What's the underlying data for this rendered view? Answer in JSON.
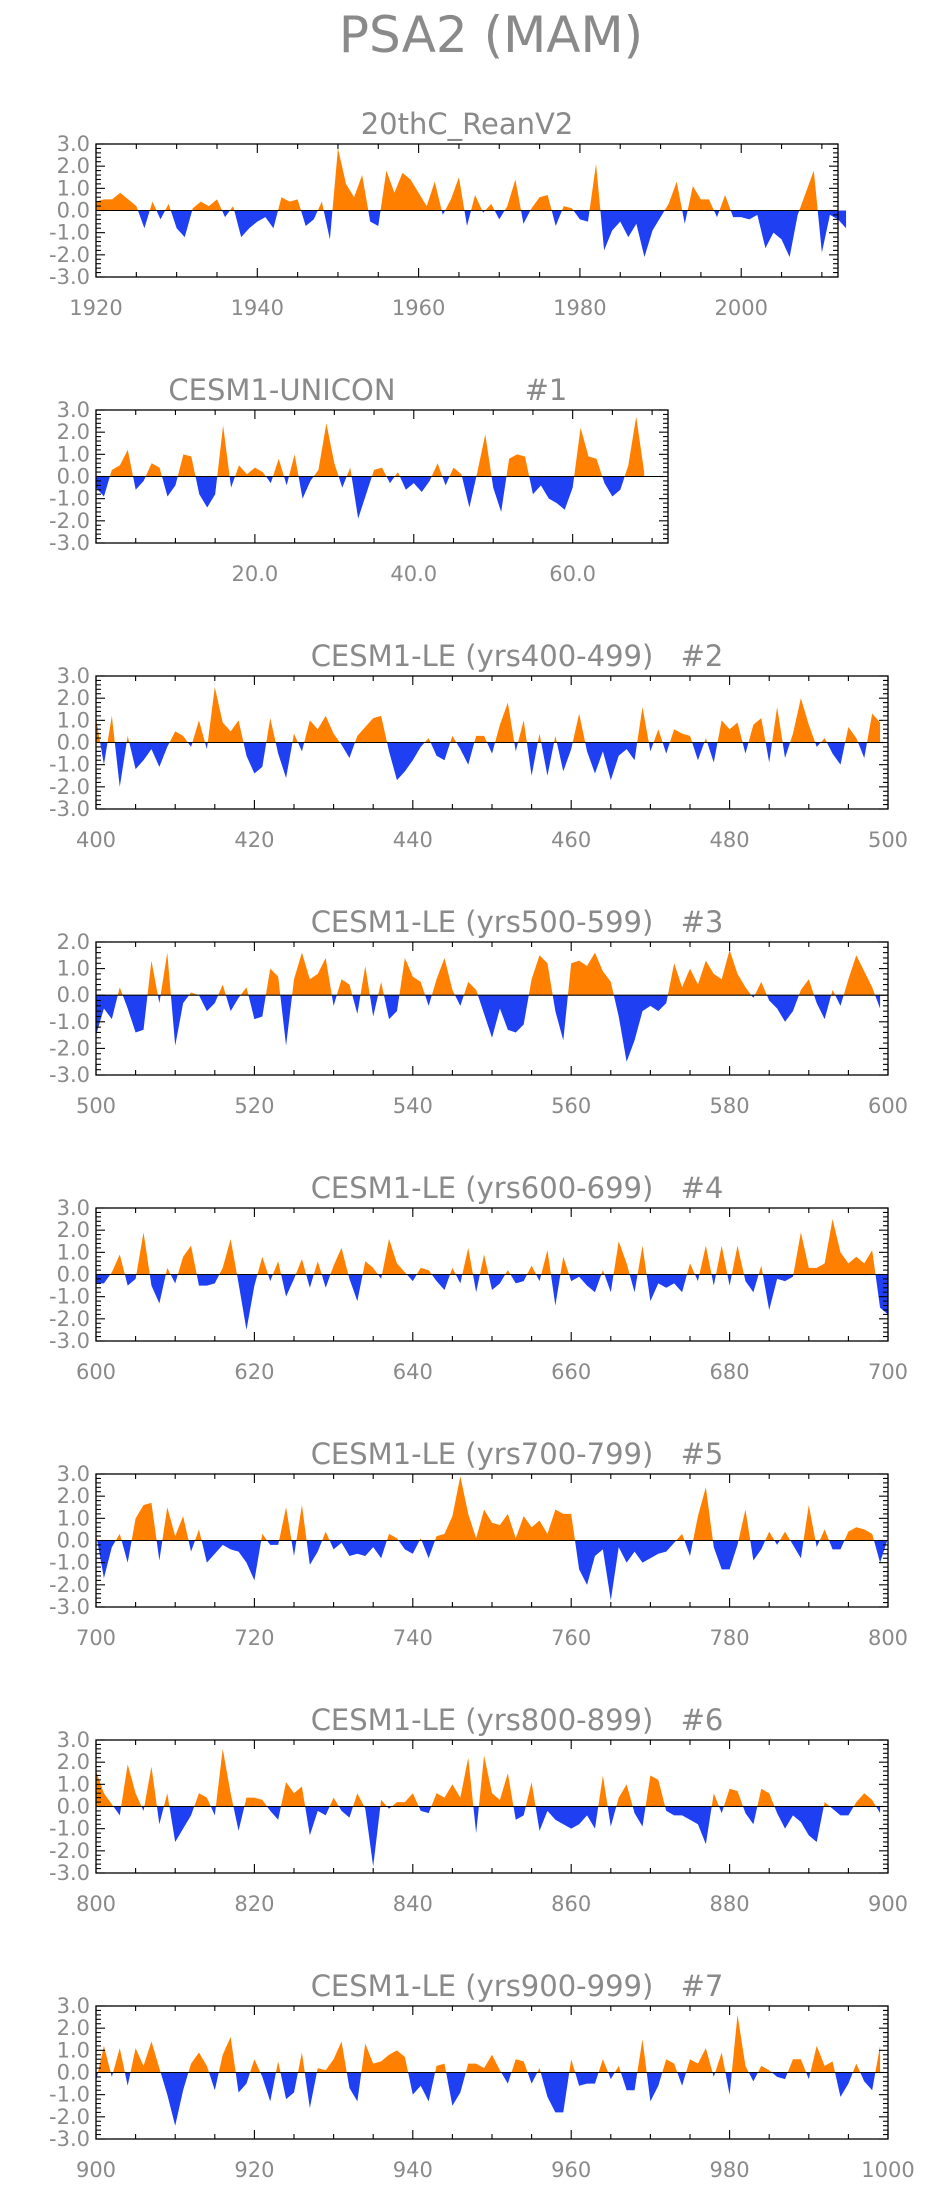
{
  "title": "PSA2 (MAM)",
  "colors": {
    "positive": "#ff8000",
    "negative": "#1f3ff2",
    "text": "#8a8a8a",
    "frame": "#000000"
  },
  "chart_data": [
    {
      "type": "area",
      "title": "20thC_ReanV2",
      "xlim": [
        1920,
        2012
      ],
      "ylim": [
        -3.0,
        3.0
      ],
      "xticks": [
        1920,
        1940,
        1960,
        1980,
        2000
      ],
      "xtick_labels": [
        "1920",
        "1940",
        "1960",
        "1980",
        "2000"
      ],
      "yticks": [
        3,
        2,
        1,
        0,
        -1,
        -2,
        -3
      ],
      "ytick_labels": [
        "3.0",
        "2.0",
        "1.0",
        "0.0",
        "-1.0",
        "-2.0",
        "-3.0"
      ],
      "x_start": 1920,
      "values": [
        0.4,
        0.5,
        0.5,
        0.8,
        0.5,
        0.2,
        -0.8,
        0.4,
        -0.4,
        0.3,
        -0.8,
        -1.2,
        0.1,
        0.4,
        0.2,
        0.5,
        -0.3,
        0.2,
        -1.2,
        -0.8,
        -0.5,
        -0.3,
        -0.8,
        0.6,
        0.4,
        0.5,
        -0.7,
        -0.4,
        0.4,
        -1.3,
        2.8,
        1.2,
        0.6,
        1.6,
        -0.5,
        -0.7,
        1.8,
        0.8,
        1.7,
        1.4,
        0.8,
        0.2,
        1.3,
        -0.2,
        0.5,
        1.5,
        -0.7,
        0.7,
        -0.1,
        0.3,
        -0.4,
        0.2,
        1.4,
        -0.6,
        0.1,
        0.6,
        0.7,
        -0.7,
        0.2,
        0.1,
        -0.4,
        -0.5,
        2.1,
        -1.8,
        -0.9,
        -0.5,
        -1.2,
        -0.6,
        -2.1,
        -0.9,
        -0.3,
        0.3,
        1.3,
        -0.6,
        1.1,
        0.5,
        0.5,
        -0.3,
        0.7,
        -0.3,
        -0.3,
        -0.4,
        -0.2,
        -1.7,
        -1.0,
        -1.3,
        -2.1,
        -0.2,
        0.8,
        1.8,
        -1.9,
        -0.2,
        -0.4,
        -0.8
      ]
    },
    {
      "type": "area",
      "title": "CESM1-UNICON",
      "member": "#1",
      "xlim": [
        0,
        72
      ],
      "ylim": [
        -3.0,
        3.0
      ],
      "xticks": [
        20,
        40,
        60
      ],
      "xtick_labels": [
        "20.0",
        "40.0",
        "60.0"
      ],
      "yticks": [
        3,
        2,
        1,
        0,
        -1,
        -2,
        -3
      ],
      "ytick_labels": [
        "3.0",
        "2.0",
        "1.0",
        "0.0",
        "-1.0",
        "-2.0",
        "-3.0"
      ],
      "x_start": 0,
      "values": [
        -0.5,
        -0.9,
        0.3,
        0.5,
        1.2,
        -0.6,
        -0.2,
        0.6,
        0.4,
        -0.9,
        -0.4,
        1.0,
        0.9,
        -0.8,
        -1.4,
        -0.8,
        2.3,
        -0.5,
        0.5,
        0.1,
        0.4,
        0.2,
        -0.3,
        0.8,
        -0.4,
        1.0,
        -1.0,
        -0.2,
        0.3,
        2.4,
        0.6,
        -0.5,
        0.4,
        -1.9,
        -0.8,
        0.3,
        0.4,
        -0.3,
        0.2,
        -0.6,
        -0.3,
        -0.7,
        -0.2,
        0.6,
        -0.4,
        0.4,
        0.1,
        -1.4,
        0.2,
        1.9,
        -0.5,
        -1.6,
        0.8,
        1.0,
        0.9,
        -0.8,
        -0.4,
        -1.0,
        -1.2,
        -1.5,
        -0.5,
        2.2,
        0.9,
        0.8,
        -0.3,
        -0.9,
        -0.6,
        0.5,
        2.7,
        0.2
      ]
    },
    {
      "type": "area",
      "title": "CESM1-LE (yrs400-499)",
      "member": "#2",
      "xlim": [
        400,
        500
      ],
      "ylim": [
        -3.0,
        3.0
      ],
      "xticks": [
        400,
        420,
        440,
        460,
        480,
        500
      ],
      "xtick_labels": [
        "400",
        "420",
        "440",
        "460",
        "480",
        "500"
      ],
      "yticks": [
        3,
        2,
        1,
        0,
        -1,
        -2,
        -3
      ],
      "ytick_labels": [
        "3.0",
        "2.0",
        "1.0",
        "0.0",
        "-1.0",
        "-2.0",
        "-3.0"
      ],
      "x_start": 400,
      "values": [
        1.1,
        -1.0,
        1.2,
        -2.0,
        0.3,
        -1.2,
        -0.8,
        -0.3,
        -1.1,
        -0.2,
        0.5,
        0.3,
        -0.2,
        1.0,
        -0.3,
        2.5,
        0.9,
        0.5,
        1.0,
        -0.6,
        -1.4,
        -1.1,
        1.1,
        -0.5,
        -1.6,
        0.4,
        -0.4,
        1.0,
        0.6,
        1.2,
        0.4,
        -0.1,
        -0.7,
        0.3,
        0.7,
        1.1,
        1.2,
        -0.4,
        -1.7,
        -1.3,
        -0.8,
        -0.2,
        0.2,
        -0.6,
        -0.8,
        0.3,
        -0.3,
        -1.0,
        0.3,
        0.3,
        -0.5,
        0.8,
        1.8,
        -0.4,
        1.0,
        -1.5,
        0.4,
        -1.5,
        0.3,
        -1.3,
        -0.3,
        1.3,
        -0.4,
        -1.4,
        -0.4,
        -1.7,
        -0.6,
        -0.3,
        -0.8,
        1.6,
        -0.4,
        0.6,
        -0.5,
        0.6,
        0.4,
        0.3,
        -0.8,
        0.2,
        -0.9,
        1.0,
        0.6,
        0.9,
        -0.5,
        0.8,
        1.1,
        -0.9,
        1.6,
        -0.7,
        0.4,
        2.0,
        0.8,
        -0.2,
        0.2,
        -0.5,
        -1.0,
        0.7,
        0.2,
        -0.7,
        1.3,
        0.9
      ]
    },
    {
      "type": "area",
      "title": "CESM1-LE (yrs500-599)",
      "member": "#3",
      "xlim": [
        500,
        600
      ],
      "ylim": [
        -3.0,
        2.0
      ],
      "xticks": [
        500,
        520,
        540,
        560,
        580,
        600
      ],
      "xtick_labels": [
        "500",
        "520",
        "540",
        "560",
        "580",
        "600"
      ],
      "yticks": [
        2,
        1,
        0,
        -1,
        -2,
        -3
      ],
      "ytick_labels": [
        "2.0",
        "1.0",
        "0.0",
        "-1.0",
        "-2.0",
        "-3.0"
      ],
      "x_start": 500,
      "values": [
        -1.5,
        -0.5,
        -0.9,
        0.3,
        -0.5,
        -1.4,
        -1.3,
        1.3,
        -0.3,
        1.6,
        -1.9,
        -0.3,
        0.1,
        0.0,
        -0.6,
        -0.3,
        0.4,
        -0.6,
        -0.1,
        0.3,
        -0.9,
        -0.8,
        1.0,
        0.7,
        -1.9,
        0.6,
        1.6,
        0.6,
        0.8,
        1.4,
        -0.4,
        0.6,
        0.4,
        -0.7,
        1.1,
        -0.8,
        0.5,
        -0.9,
        -0.6,
        1.4,
        0.7,
        0.5,
        -0.4,
        0.6,
        1.4,
        0.2,
        -0.4,
        0.5,
        0.2,
        -0.7,
        -1.6,
        -0.5,
        -1.3,
        -1.4,
        -1.1,
        0.6,
        1.5,
        1.2,
        -0.6,
        -1.7,
        1.2,
        1.3,
        1.1,
        1.6,
        0.9,
        0.5,
        -0.8,
        -2.5,
        -1.7,
        -0.6,
        -0.4,
        -0.6,
        -0.3,
        1.2,
        0.3,
        1.0,
        0.4,
        1.3,
        0.8,
        0.6,
        1.7,
        0.8,
        0.3,
        -0.1,
        0.5,
        -0.2,
        -0.5,
        -1.0,
        -0.6,
        0.2,
        0.6,
        -0.3,
        -0.9,
        0.2,
        -0.4,
        0.6,
        1.5,
        0.9,
        0.3,
        -0.5
      ]
    },
    {
      "type": "area",
      "title": "CESM1-LE (yrs600-699)",
      "member": "#4",
      "xlim": [
        600,
        700
      ],
      "ylim": [
        -3.0,
        3.0
      ],
      "xticks": [
        600,
        620,
        640,
        660,
        680,
        700
      ],
      "xtick_labels": [
        "600",
        "620",
        "640",
        "660",
        "680",
        "700"
      ],
      "yticks": [
        3,
        2,
        1,
        0,
        -1,
        -2,
        -3
      ],
      "ytick_labels": [
        "3.0",
        "2.0",
        "1.0",
        "0.0",
        "-1.0",
        "-2.0",
        "-3.0"
      ],
      "x_start": 600,
      "values": [
        -0.4,
        -0.4,
        0.1,
        0.9,
        -0.5,
        -0.2,
        1.9,
        -0.5,
        -1.3,
        0.3,
        -0.4,
        0.8,
        1.3,
        -0.5,
        -0.5,
        -0.4,
        0.3,
        1.6,
        -0.4,
        -2.5,
        -0.5,
        0.8,
        -0.3,
        0.6,
        -1.0,
        -0.2,
        0.7,
        -0.6,
        0.6,
        -0.6,
        0.4,
        1.2,
        -0.2,
        -1.2,
        0.6,
        0.3,
        -0.2,
        1.6,
        0.5,
        0.1,
        -0.3,
        0.3,
        0.2,
        -0.3,
        -0.7,
        0.3,
        -0.4,
        1.2,
        -0.8,
        0.9,
        -0.7,
        -0.4,
        0.2,
        -0.4,
        -0.3,
        0.4,
        -0.3,
        1.1,
        -1.4,
        0.8,
        -0.3,
        -0.1,
        -0.5,
        -0.8,
        0.2,
        -0.8,
        1.5,
        0.5,
        -0.8,
        1.3,
        -1.2,
        -0.4,
        -0.6,
        -0.4,
        -0.8,
        0.5,
        -0.3,
        1.3,
        -0.5,
        1.3,
        -0.5,
        1.3,
        -0.3,
        -0.8,
        0.4,
        -1.6,
        -0.2,
        -0.3,
        -0.1,
        1.9,
        0.3,
        0.3,
        0.5,
        2.5,
        1.0,
        0.5,
        0.8,
        0.5,
        1.1,
        -1.5,
        -1.8
      ]
    },
    {
      "type": "area",
      "title": "CESM1-LE (yrs700-799)",
      "member": "#5",
      "xlim": [
        700,
        800
      ],
      "ylim": [
        -3.0,
        3.0
      ],
      "xticks": [
        700,
        720,
        740,
        760,
        780,
        800
      ],
      "xtick_labels": [
        "700",
        "720",
        "740",
        "760",
        "780",
        "800"
      ],
      "yticks": [
        3,
        2,
        1,
        0,
        -1,
        -2,
        -3
      ],
      "ytick_labels": [
        "3.0",
        "2.0",
        "1.0",
        "0.0",
        "-1.0",
        "-2.0",
        "-3.0"
      ],
      "x_start": 700,
      "values": [
        0.3,
        -1.7,
        -0.3,
        0.3,
        -1.0,
        1.0,
        1.6,
        1.7,
        -0.9,
        1.5,
        0.2,
        1.1,
        -0.5,
        0.5,
        -1.0,
        -0.6,
        -0.2,
        -0.4,
        -0.5,
        -1.0,
        -1.8,
        0.3,
        -0.2,
        -0.2,
        1.5,
        -0.7,
        1.6,
        -1.1,
        -0.5,
        0.4,
        -0.4,
        -0.1,
        -0.7,
        -0.6,
        -0.7,
        -0.3,
        -0.8,
        0.3,
        0.1,
        -0.4,
        -0.6,
        0.1,
        -0.8,
        0.2,
        0.3,
        1.1,
        2.9,
        1.2,
        0.1,
        1.4,
        0.8,
        0.7,
        1.2,
        0.1,
        1.1,
        0.6,
        0.9,
        0.3,
        1.4,
        1.2,
        1.2,
        -1.3,
        -2.0,
        -0.7,
        -0.4,
        -2.7,
        -0.3,
        -1.0,
        -0.5,
        -1.0,
        -0.8,
        -0.6,
        -0.5,
        -0.1,
        0.3,
        -0.7,
        1.1,
        2.4,
        -0.3,
        -1.3,
        -1.3,
        -0.2,
        1.4,
        -0.9,
        -0.4,
        0.4,
        -0.2,
        0.4,
        -0.2,
        -0.8,
        1.6,
        -0.3,
        0.5,
        -0.4,
        -0.4,
        0.4,
        0.6,
        0.5,
        0.3,
        -1.0,
        0.1
      ]
    },
    {
      "type": "area",
      "title": "CESM1-LE (yrs800-899)",
      "member": "#6",
      "xlim": [
        800,
        900
      ],
      "ylim": [
        -3.0,
        3.0
      ],
      "xticks": [
        800,
        820,
        840,
        860,
        880,
        900
      ],
      "xtick_labels": [
        "800",
        "820",
        "840",
        "860",
        "880",
        "900"
      ],
      "yticks": [
        3,
        2,
        1,
        0,
        -1,
        -2,
        -3
      ],
      "ytick_labels": [
        "3.0",
        "2.0",
        "1.0",
        "0.0",
        "-1.0",
        "-2.0",
        "-3.0"
      ],
      "x_start": 800,
      "values": [
        1.6,
        0.6,
        0.1,
        -0.4,
        1.9,
        0.6,
        -0.2,
        1.8,
        -0.8,
        0.6,
        -1.6,
        -1.0,
        -0.4,
        0.6,
        0.4,
        -0.4,
        2.6,
        0.6,
        -1.1,
        0.4,
        0.4,
        0.3,
        -0.2,
        -0.6,
        1.1,
        0.6,
        0.9,
        -1.3,
        -0.2,
        -0.4,
        0.4,
        -0.2,
        -0.5,
        0.6,
        -0.1,
        -2.7,
        0.3,
        -0.1,
        0.2,
        0.2,
        0.6,
        -0.2,
        -0.3,
        0.6,
        0.4,
        1.0,
        0.4,
        2.2,
        -1.2,
        2.3,
        0.6,
        0.3,
        1.5,
        -0.6,
        -0.4,
        1.1,
        -1.1,
        -0.2,
        -0.6,
        -0.8,
        -1.0,
        -0.8,
        -0.4,
        -1.0,
        1.4,
        -0.9,
        0.4,
        1.0,
        -0.3,
        -0.9,
        1.4,
        1.2,
        -0.2,
        -0.4,
        -0.4,
        -0.6,
        -0.8,
        -1.7,
        0.6,
        -0.3,
        0.8,
        0.7,
        -0.3,
        -0.8,
        0.8,
        0.6,
        -0.3,
        -1.0,
        -0.4,
        -0.7,
        -1.3,
        -1.6,
        0.2,
        -0.1,
        -0.4,
        -0.4,
        0.2,
        0.6,
        0.3,
        -0.3
      ]
    },
    {
      "type": "area",
      "title": "CESM1-LE (yrs900-999)",
      "member": "#7",
      "xlim": [
        900,
        1000
      ],
      "ylim": [
        -3.0,
        3.0
      ],
      "xticks": [
        900,
        920,
        940,
        960,
        980,
        1000
      ],
      "xtick_labels": [
        "900",
        "920",
        "940",
        "960",
        "980",
        "1000"
      ],
      "yticks": [
        3,
        2,
        1,
        0,
        -1,
        -2,
        -3
      ],
      "ytick_labels": [
        "3.0",
        "2.0",
        "1.0",
        "0.0",
        "-1.0",
        "-2.0",
        "-3.0"
      ],
      "x_start": 900,
      "values": [
        -0.4,
        1.2,
        -0.2,
        1.1,
        -0.6,
        1.1,
        0.3,
        1.4,
        0.2,
        -1.0,
        -2.4,
        -0.8,
        0.4,
        0.9,
        0.3,
        -0.8,
        0.8,
        1.6,
        -0.9,
        -0.5,
        0.6,
        -0.2,
        -1.3,
        0.5,
        -1.2,
        -0.9,
        0.9,
        -1.6,
        0.2,
        0.1,
        0.6,
        1.4,
        -0.7,
        -1.3,
        1.3,
        0.4,
        0.5,
        0.8,
        1.0,
        0.7,
        -1.0,
        -0.6,
        -1.3,
        0.3,
        0.4,
        -1.5,
        -0.9,
        0.4,
        0.4,
        0.2,
        0.8,
        0.1,
        -0.5,
        0.6,
        0.5,
        -0.5,
        0.2,
        -1.1,
        -1.8,
        -1.8,
        0.6,
        -0.6,
        -0.5,
        -0.5,
        0.6,
        -0.3,
        0.3,
        -0.8,
        -0.8,
        1.5,
        -1.3,
        -0.6,
        0.6,
        0.4,
        -0.6,
        0.6,
        0.4,
        1.1,
        -0.2,
        0.9,
        -1.0,
        2.6,
        0.3,
        -0.4,
        0.3,
        0.1,
        -0.2,
        -0.3,
        0.6,
        0.6,
        -0.3,
        1.2,
        0.3,
        0.5,
        -1.1,
        -0.5,
        0.4,
        -0.4,
        -0.8,
        1.2
      ]
    }
  ]
}
